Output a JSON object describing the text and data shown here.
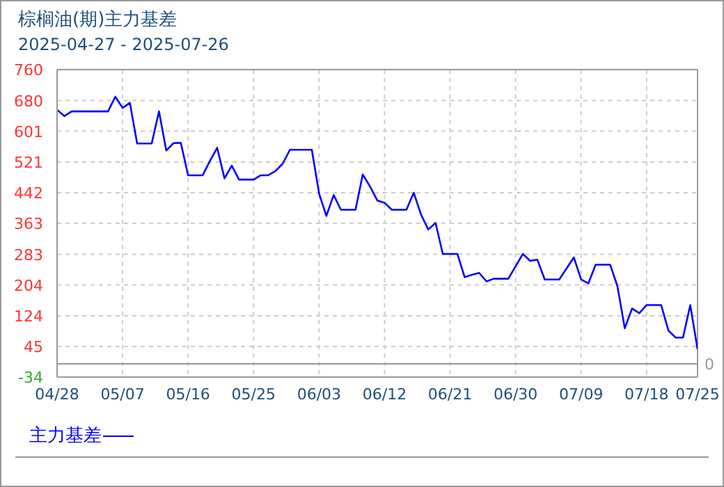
{
  "chart_data": {
    "type": "line",
    "title": "棕榈油(期)主力基差",
    "subtitle": "2025-04-27 - 2025-07-26",
    "x": [
      "2025-04-28",
      "2025-04-29",
      "2025-04-30",
      "2025-05-05",
      "2025-05-06",
      "2025-05-07",
      "2025-05-08",
      "2025-05-09",
      "2025-05-11",
      "2025-05-12",
      "2025-05-13",
      "2025-05-14",
      "2025-05-15",
      "2025-05-16",
      "2025-05-18",
      "2025-05-19",
      "2025-05-20",
      "2025-05-21",
      "2025-05-22",
      "2025-05-23",
      "2025-05-25",
      "2025-05-26",
      "2025-05-27",
      "2025-05-28",
      "2025-05-29",
      "2025-05-30",
      "2025-06-02",
      "2025-06-03",
      "2025-06-04",
      "2025-06-05",
      "2025-06-06",
      "2025-06-08",
      "2025-06-09",
      "2025-06-10",
      "2025-06-11",
      "2025-06-12",
      "2025-06-13",
      "2025-06-15",
      "2025-06-16",
      "2025-06-17",
      "2025-06-18",
      "2025-06-19",
      "2025-06-20",
      "2025-06-22",
      "2025-06-23",
      "2025-06-24",
      "2025-06-25",
      "2025-06-26",
      "2025-06-27",
      "2025-06-29",
      "2025-07-01",
      "2025-07-02",
      "2025-07-03",
      "2025-07-04",
      "2025-07-06",
      "2025-07-08",
      "2025-07-09",
      "2025-07-10",
      "2025-07-11",
      "2025-07-13",
      "2025-07-14",
      "2025-07-15",
      "2025-07-16",
      "2025-07-17",
      "2025-07-18",
      "2025-07-20",
      "2025-07-21",
      "2025-07-22",
      "2025-07-23",
      "2025-07-24",
      "2025-07-25"
    ],
    "series": [
      {
        "name": "主力基差",
        "color": "#0000ff",
        "values": [
          656,
          640,
          652,
          652,
          690,
          661,
          674,
          569,
          569,
          652,
          551,
          570,
          571,
          487,
          487,
          524,
          558,
          479,
          512,
          476,
          476,
          487,
          487,
          498,
          517,
          553,
          553,
          440,
          382,
          436,
          398,
          398,
          489,
          458,
          422,
          416,
          398,
          398,
          442,
          386,
          347,
          364,
          284,
          284,
          224,
          230,
          235,
          213,
          220,
          220,
          284,
          266,
          269,
          218,
          218,
          275,
          218,
          208,
          256,
          256,
          200,
          92,
          143,
          131,
          152,
          152,
          86,
          68,
          68,
          152,
          38
        ]
      }
    ],
    "xlim": [
      "2025-04-28",
      "2025-07-25"
    ],
    "xticks": [
      {
        "value": "2025-04-28",
        "label": "04/28"
      },
      {
        "value": "2025-05-07",
        "label": "05/07"
      },
      {
        "value": "2025-05-16",
        "label": "05/16"
      },
      {
        "value": "2025-05-25",
        "label": "05/25"
      },
      {
        "value": "2025-06-03",
        "label": "06/03"
      },
      {
        "value": "2025-06-12",
        "label": "06/12"
      },
      {
        "value": "2025-06-21",
        "label": "06/21"
      },
      {
        "value": "2025-06-30",
        "label": "06/30"
      },
      {
        "value": "2025-07-09",
        "label": "07/09"
      },
      {
        "value": "2025-07-18",
        "label": "07/18"
      },
      {
        "value": "2025-07-25",
        "label": "07/25"
      }
    ],
    "ylim": [
      -34,
      760
    ],
    "yticks": [
      -34,
      45,
      124,
      204,
      283,
      363,
      442,
      521,
      601,
      680,
      760
    ],
    "grid": true,
    "legend": "bottom left",
    "ref_lines": [
      {
        "axis": "y",
        "value": 0,
        "label": "0",
        "color": "#999999"
      }
    ]
  }
}
